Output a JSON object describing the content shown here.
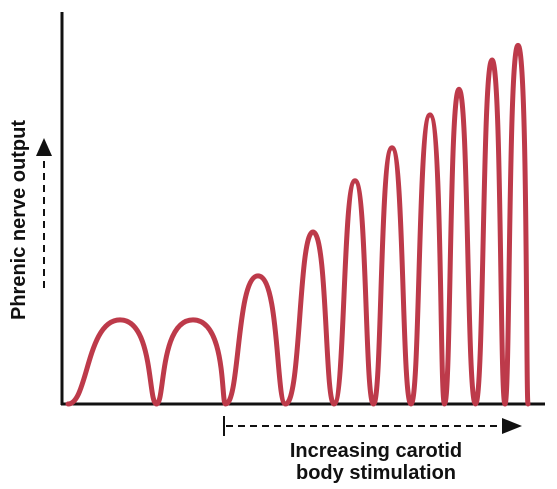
{
  "figure": {
    "y_axis_label": "Phrenic nerve output",
    "x_axis_label_line1": "Increasing carotid",
    "x_axis_label_line2": "body stimulation"
  },
  "colors": {
    "trace": "#BD3A4A",
    "axis": "#111111",
    "background": "#FFFFFF"
  },
  "chart_data": {
    "type": "line",
    "title": "",
    "xlabel": "Increasing carotid body stimulation",
    "ylabel": "Phrenic nerve output",
    "series": [
      {
        "bursts": [
          {
            "peak": 0.23
          },
          {
            "peak": 0.23
          },
          {
            "peak": 0.35
          },
          {
            "peak": 0.47
          },
          {
            "peak": 0.61
          },
          {
            "peak": 0.7
          },
          {
            "peak": 0.79
          },
          {
            "peak": 0.86
          },
          {
            "peak": 0.94
          },
          {
            "peak": 0.98
          }
        ]
      }
    ]
  }
}
